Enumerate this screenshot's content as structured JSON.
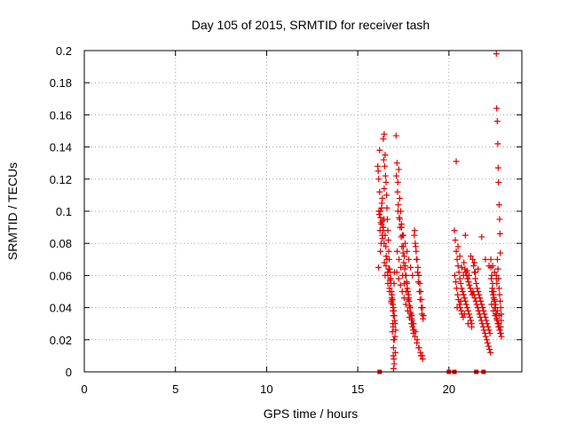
{
  "chart_data": {
    "type": "scatter",
    "title": "Day 105 of 2015, SRMTID for receiver tash",
    "xlabel": "GPS time / hours",
    "ylabel": "SRMTID / TECUs",
    "xlim": [
      0,
      24
    ],
    "ylim": [
      0,
      0.2
    ],
    "x_ticks": [
      0,
      5,
      10,
      15,
      20
    ],
    "x_tick_labels": [
      "0",
      "5",
      "10",
      "15",
      "20"
    ],
    "y_ticks": [
      0,
      0.02,
      0.04,
      0.06,
      0.08,
      0.1,
      0.12,
      0.14,
      0.16,
      0.18,
      0.2
    ],
    "y_tick_labels": [
      "0",
      "0.02",
      "0.04",
      "0.06",
      "0.08",
      "0.1",
      "0.12",
      "0.14",
      "0.16",
      "0.18",
      "0.2"
    ],
    "grid": true,
    "legend": "none",
    "marker": "plus",
    "color": "#e00000",
    "series": [
      {
        "x": [
          16.1,
          16.15,
          16.2,
          16.25,
          16.3,
          16.35,
          16.4,
          16.45,
          16.5,
          16.55,
          16.6,
          16.65,
          16.7,
          16.75,
          16.8,
          16.85,
          16.9,
          16.95,
          17.0,
          17.05,
          16.12,
          16.18,
          16.22,
          16.28,
          16.32,
          16.38,
          16.42,
          16.48,
          16.52,
          16.58,
          16.62,
          16.68,
          16.72,
          16.78,
          16.82,
          16.88,
          16.92,
          16.98,
          17.02,
          17.08,
          16.14,
          16.24,
          16.34,
          16.44,
          16.54,
          16.64,
          16.74,
          16.84,
          16.94,
          17.04,
          16.16,
          16.26,
          16.36,
          16.46,
          16.56,
          16.66,
          16.76,
          16.86,
          16.96,
          17.06,
          16.2,
          16.3,
          16.4,
          16.5,
          16.6,
          16.7,
          16.8,
          16.9,
          17.0,
          16.25,
          16.35,
          16.45,
          16.55,
          16.65,
          16.75,
          16.85,
          16.95,
          16.4,
          16.45,
          16.5,
          16.9,
          16.95,
          17.0,
          16.92,
          16.97,
          16.98,
          16.93,
          16.96,
          16.99,
          17.01
        ],
        "y": [
          0.128,
          0.12,
          0.138,
          0.096,
          0.092,
          0.108,
          0.145,
          0.148,
          0.135,
          0.118,
          0.102,
          0.088,
          0.075,
          0.064,
          0.058,
          0.05,
          0.045,
          0.04,
          0.035,
          0.03,
          0.125,
          0.098,
          0.088,
          0.08,
          0.105,
          0.09,
          0.132,
          0.128,
          0.122,
          0.11,
          0.095,
          0.082,
          0.07,
          0.062,
          0.055,
          0.048,
          0.042,
          0.038,
          0.032,
          0.026,
          0.065,
          0.075,
          0.085,
          0.095,
          0.078,
          0.062,
          0.052,
          0.044,
          0.028,
          0.022,
          0.1,
          0.093,
          0.083,
          0.068,
          0.072,
          0.06,
          0.057,
          0.046,
          0.015,
          0.012,
          0.112,
          0.102,
          0.09,
          0.085,
          0.07,
          0.064,
          0.058,
          0.045,
          0.02,
          0.1,
          0.094,
          0.08,
          0.066,
          0.055,
          0.05,
          0.043,
          0.035,
          0.088,
          0.114,
          0.06,
          0.025,
          0.01,
          0.005,
          0.03,
          0.02,
          0.008,
          0.038,
          0.002,
          0.055,
          0.062
        ]
      },
      {
        "x": [
          17.1,
          17.15,
          17.2,
          17.25,
          17.3,
          17.35,
          17.4,
          17.45,
          17.5,
          17.55,
          17.6,
          17.65,
          17.7,
          17.75,
          17.8,
          17.85,
          17.9,
          17.95,
          18.0,
          18.05,
          17.12,
          17.18,
          17.22,
          17.28,
          17.32,
          17.38,
          17.42,
          17.48,
          17.52,
          17.58,
          17.62,
          17.68,
          17.72,
          17.78,
          17.82,
          17.88,
          17.92,
          17.98,
          18.02,
          18.08,
          18.1,
          18.15,
          18.2,
          18.25,
          18.3,
          18.35,
          18.4,
          18.45,
          18.5,
          18.55,
          18.6,
          18.12,
          18.18,
          18.22,
          18.28,
          18.32,
          18.38,
          18.42,
          18.48,
          18.52,
          18.58,
          17.14,
          17.24,
          17.34,
          17.44,
          17.54,
          17.64,
          17.74,
          17.84,
          17.94,
          18.04,
          18.14,
          18.24,
          18.34,
          18.44,
          18.54,
          17.16,
          17.26,
          17.36,
          17.46,
          17.56,
          17.66,
          17.76,
          17.86,
          17.96,
          18.06,
          18.16,
          18.26,
          18.36,
          18.46,
          18.56,
          17.2,
          17.3,
          17.4,
          17.5,
          17.6,
          17.7,
          17.8,
          17.9,
          18.0
        ],
        "y": [
          0.147,
          0.13,
          0.118,
          0.126,
          0.108,
          0.1,
          0.092,
          0.085,
          0.078,
          0.072,
          0.066,
          0.06,
          0.055,
          0.05,
          0.046,
          0.041,
          0.037,
          0.033,
          0.028,
          0.024,
          0.122,
          0.112,
          0.104,
          0.096,
          0.09,
          0.084,
          0.078,
          0.074,
          0.068,
          0.064,
          0.06,
          0.056,
          0.052,
          0.048,
          0.044,
          0.04,
          0.036,
          0.032,
          0.03,
          0.026,
          0.085,
          0.08,
          0.075,
          0.07,
          0.065,
          0.06,
          0.055,
          0.05,
          0.045,
          0.04,
          0.035,
          0.088,
          0.078,
          0.07,
          0.062,
          0.056,
          0.05,
          0.045,
          0.04,
          0.036,
          0.033,
          0.062,
          0.058,
          0.054,
          0.05,
          0.046,
          0.042,
          0.038,
          0.034,
          0.03,
          0.026,
          0.022,
          0.018,
          0.015,
          0.012,
          0.01,
          0.075,
          0.07,
          0.065,
          0.06,
          0.055,
          0.05,
          0.045,
          0.04,
          0.035,
          0.03,
          0.025,
          0.02,
          0.015,
          0.01,
          0.008,
          0.1,
          0.095,
          0.09,
          0.085,
          0.08,
          0.075,
          0.07,
          0.065,
          0.06
        ]
      },
      {
        "x": [
          20.3,
          20.35,
          20.4,
          20.45,
          20.5,
          20.55,
          20.6,
          20.65,
          20.7,
          20.75,
          20.8,
          20.85,
          20.9,
          20.95,
          21.0,
          21.05,
          21.1,
          21.15,
          21.2,
          21.25,
          20.32,
          20.38,
          20.42,
          20.48,
          20.52,
          20.58,
          20.62,
          20.68,
          20.72,
          20.78,
          20.82,
          20.88,
          20.92,
          20.98,
          21.02,
          21.08,
          21.12,
          21.18,
          21.22,
          21.28,
          21.3,
          21.35,
          21.4,
          21.45,
          21.5,
          21.55,
          21.6,
          21.65,
          21.7,
          21.75,
          21.8,
          21.85,
          21.9,
          21.95,
          22.0,
          22.05,
          22.1,
          22.15,
          22.2,
          22.25,
          21.32,
          21.38,
          21.42,
          21.48,
          21.52,
          21.58,
          21.62,
          21.68,
          21.72,
          21.78,
          21.82,
          21.88,
          21.92,
          21.98,
          22.02,
          22.08,
          22.12,
          22.18,
          22.22,
          22.28,
          20.4,
          20.5,
          20.6,
          20.7,
          20.8,
          20.9,
          21.0,
          21.1,
          21.2,
          21.4,
          21.6,
          21.8,
          22.0,
          22.2,
          20.45,
          20.65,
          20.85,
          21.05,
          21.25,
          21.45
        ],
        "y": [
          0.088,
          0.082,
          0.075,
          0.07,
          0.066,
          0.062,
          0.058,
          0.055,
          0.052,
          0.05,
          0.048,
          0.046,
          0.044,
          0.042,
          0.04,
          0.038,
          0.036,
          0.034,
          0.032,
          0.03,
          0.06,
          0.056,
          0.052,
          0.048,
          0.045,
          0.042,
          0.04,
          0.038,
          0.036,
          0.034,
          0.068,
          0.064,
          0.062,
          0.06,
          0.058,
          0.056,
          0.054,
          0.052,
          0.05,
          0.048,
          0.07,
          0.066,
          0.062,
          0.058,
          0.055,
          0.052,
          0.05,
          0.048,
          0.046,
          0.044,
          0.042,
          0.04,
          0.038,
          0.036,
          0.034,
          0.032,
          0.03,
          0.028,
          0.026,
          0.024,
          0.05,
          0.048,
          0.046,
          0.044,
          0.042,
          0.04,
          0.038,
          0.036,
          0.034,
          0.032,
          0.03,
          0.028,
          0.026,
          0.024,
          0.022,
          0.02,
          0.018,
          0.016,
          0.014,
          0.012,
          0.131,
          0.078,
          0.072,
          0.065,
          0.06,
          0.085,
          0.063,
          0.06,
          0.072,
          0.068,
          0.064,
          0.084,
          0.07,
          0.066,
          0.04,
          0.044,
          0.036,
          0.03,
          0.028,
          0.062
        ]
      },
      {
        "x": [
          22.3,
          22.35,
          22.4,
          22.45,
          22.5,
          22.55,
          22.6,
          22.65,
          22.7,
          22.75,
          22.8,
          22.85,
          22.32,
          22.38,
          22.42,
          22.48,
          22.52,
          22.58,
          22.62,
          22.68,
          22.72,
          22.78,
          22.82,
          22.88,
          22.34,
          22.44,
          22.54,
          22.64,
          22.74,
          22.84,
          22.36,
          22.46,
          22.56,
          22.66,
          22.76,
          22.86,
          22.3,
          22.4,
          22.5,
          22.6,
          22.6,
          22.62,
          22.65,
          22.68,
          22.7,
          22.72,
          22.75,
          22.78,
          22.8,
          22.82,
          22.6,
          22.63,
          22.66,
          22.69,
          22.72,
          22.75,
          22.78,
          22.81,
          22.84,
          22.87
        ],
        "y": [
          0.065,
          0.06,
          0.055,
          0.05,
          0.045,
          0.04,
          0.036,
          0.032,
          0.03,
          0.028,
          0.026,
          0.024,
          0.058,
          0.052,
          0.048,
          0.044,
          0.04,
          0.036,
          0.033,
          0.03,
          0.028,
          0.026,
          0.024,
          0.022,
          0.042,
          0.038,
          0.035,
          0.032,
          0.03,
          0.028,
          0.05,
          0.046,
          0.042,
          0.038,
          0.035,
          0.032,
          0.07,
          0.066,
          0.062,
          0.058,
          0.198,
          0.164,
          0.156,
          0.142,
          0.127,
          0.118,
          0.104,
          0.095,
          0.086,
          0.074,
          0.06,
          0.055,
          0.07,
          0.064,
          0.058,
          0.052,
          0.048,
          0.044,
          0.04,
          0.036
        ]
      },
      {
        "x": [
          16.2,
          20.0,
          20.3,
          21.5,
          21.9
        ],
        "y": [
          0,
          0,
          0,
          0,
          0
        ],
        "marker": "square"
      }
    ]
  }
}
